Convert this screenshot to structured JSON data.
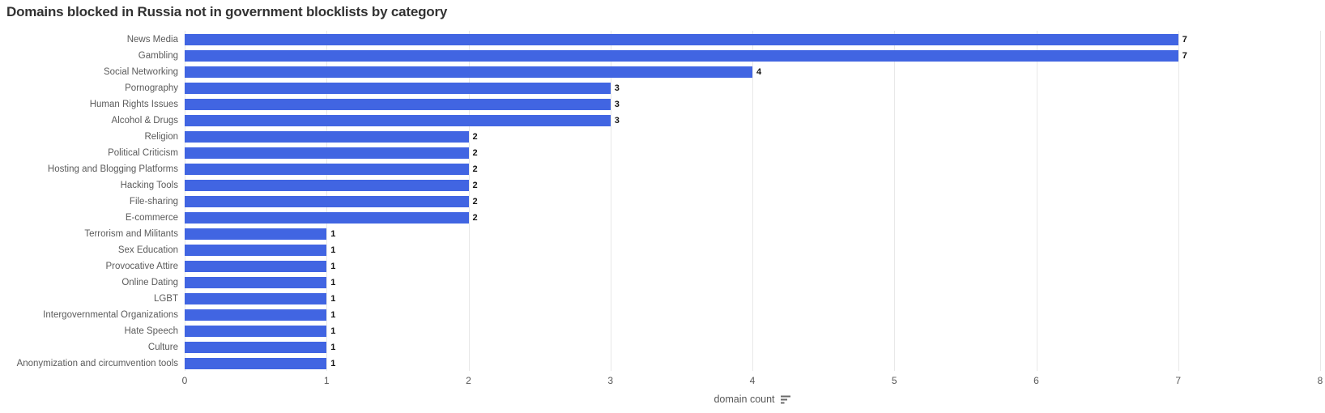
{
  "title": "Domains blocked in Russia not in government blocklists by category",
  "x_axis": {
    "label": "domain count",
    "ticks": [
      "0",
      "1",
      "2",
      "3",
      "4",
      "5",
      "6",
      "7",
      "8"
    ]
  },
  "chart_data": {
    "type": "bar",
    "orientation": "horizontal",
    "title": "Domains blocked in Russia not in government blocklists by category",
    "xlabel": "domain count",
    "ylabel": "",
    "xlim": [
      0,
      8
    ],
    "grid": true,
    "legend": false,
    "categories": [
      "News Media",
      "Gambling",
      "Social Networking",
      "Pornography",
      "Human Rights Issues",
      "Alcohol & Drugs",
      "Religion",
      "Political Criticism",
      "Hosting and Blogging Platforms",
      "Hacking Tools",
      "File-sharing",
      "E-commerce",
      "Terrorism and Militants",
      "Sex Education",
      "Provocative Attire",
      "Online Dating",
      "LGBT",
      "Intergovernmental Organizations",
      "Hate Speech",
      "Culture",
      "Anonymization and circumvention tools"
    ],
    "values": [
      7,
      7,
      4,
      3,
      3,
      3,
      2,
      2,
      2,
      2,
      2,
      2,
      1,
      1,
      1,
      1,
      1,
      1,
      1,
      1,
      1
    ]
  },
  "colors": {
    "bar": "#4165e2",
    "grid": "#e8e8e8",
    "title": "#323232",
    "category_label": "#5b5b5b",
    "value_label": "#151515",
    "tick_label": "#575757",
    "sort_icon": "#6b6b6b"
  },
  "icons": {
    "sort": "sort-descending-icon"
  }
}
